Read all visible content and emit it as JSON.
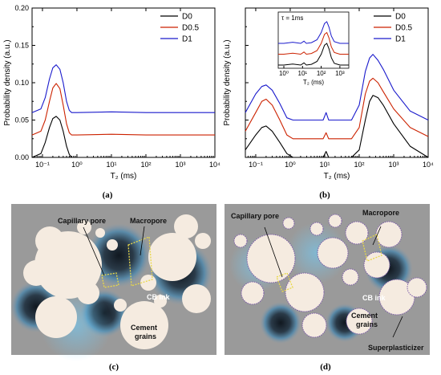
{
  "panel_labels": {
    "a": "(a)",
    "b": "(b)",
    "c": "(c)",
    "d": "(d)"
  },
  "colors": {
    "D0": "#000000",
    "D0.5": "#cc2200",
    "D1": "#1a1acc"
  },
  "chart_data": [
    {
      "type": "line",
      "panel": "a",
      "xlabel": "T₂ (ms)",
      "ylabel": "Probability density (a.u.)",
      "xscale": "log",
      "xlim": [
        0.05,
        10000
      ],
      "ylim": [
        0,
        0.2
      ],
      "x_ticks": [
        "10⁻¹",
        "10⁰",
        "10¹",
        "10²",
        "10³",
        "10⁴"
      ],
      "y_ticks": [
        "0.00",
        "0.05",
        "0.10",
        "0.15",
        "0.20"
      ],
      "legend": "top-right",
      "series": [
        {
          "name": "D0",
          "color": "#000000",
          "x": [
            0.05,
            0.09,
            0.12,
            0.16,
            0.2,
            0.25,
            0.32,
            0.4,
            0.5,
            0.6,
            0.7,
            1,
            10,
            100,
            1000,
            10000
          ],
          "y": [
            0.0,
            0.005,
            0.02,
            0.04,
            0.052,
            0.055,
            0.05,
            0.035,
            0.015,
            0.004,
            0.0,
            0.0,
            0.0,
            0.0,
            0.0,
            0.0
          ]
        },
        {
          "name": "D0.5",
          "color": "#cc2200",
          "x": [
            0.05,
            0.09,
            0.12,
            0.16,
            0.2,
            0.25,
            0.32,
            0.4,
            0.5,
            0.6,
            0.7,
            1,
            10,
            100,
            1000,
            10000
          ],
          "y": [
            0.03,
            0.035,
            0.05,
            0.075,
            0.093,
            0.099,
            0.092,
            0.07,
            0.045,
            0.033,
            0.03,
            0.03,
            0.031,
            0.03,
            0.03,
            0.03
          ]
        },
        {
          "name": "D1",
          "color": "#1a1acc",
          "x": [
            0.05,
            0.09,
            0.12,
            0.16,
            0.2,
            0.25,
            0.32,
            0.4,
            0.5,
            0.6,
            0.7,
            1,
            10,
            100,
            1000,
            10000
          ],
          "y": [
            0.06,
            0.065,
            0.08,
            0.105,
            0.12,
            0.124,
            0.118,
            0.1,
            0.075,
            0.063,
            0.06,
            0.06,
            0.061,
            0.06,
            0.06,
            0.06
          ]
        }
      ]
    },
    {
      "type": "line",
      "panel": "b",
      "xlabel": "T₂ (ms)",
      "ylabel": "Probability density (a.u.)",
      "xscale": "log",
      "xlim": [
        0.05,
        10000
      ],
      "ylim": [
        0,
        0.2
      ],
      "x_ticks": [
        "10⁻¹",
        "10⁰",
        "10¹",
        "10²",
        "10³",
        "10⁴"
      ],
      "legend": "top-right",
      "inset": {
        "label": "τ = 1ms",
        "xlabel": "T₂ (ms)",
        "x_ticks": [
          "10⁰",
          "10¹",
          "10²",
          "10³"
        ]
      },
      "series": [
        {
          "name": "D0",
          "color": "#000000",
          "x": [
            0.05,
            0.1,
            0.15,
            0.2,
            0.3,
            0.5,
            0.8,
            1.2,
            2,
            5,
            9,
            11,
            13,
            20,
            60,
            100,
            150,
            200,
            250,
            350,
            500,
            1000,
            3000,
            10000
          ],
          "y": [
            0.01,
            0.03,
            0.04,
            0.042,
            0.035,
            0.02,
            0.005,
            0.0,
            0.0,
            0.0,
            0.0,
            0.008,
            0.0,
            0.0,
            0.0,
            0.01,
            0.05,
            0.075,
            0.083,
            0.08,
            0.07,
            0.045,
            0.015,
            0.0
          ]
        },
        {
          "name": "D0.5",
          "color": "#cc2200",
          "x": [
            0.05,
            0.1,
            0.15,
            0.2,
            0.3,
            0.5,
            0.8,
            1.2,
            2,
            5,
            9,
            11,
            13,
            20,
            60,
            100,
            150,
            200,
            250,
            350,
            500,
            1000,
            3000,
            10000
          ],
          "y": [
            0.035,
            0.06,
            0.075,
            0.078,
            0.07,
            0.05,
            0.03,
            0.025,
            0.025,
            0.025,
            0.025,
            0.033,
            0.025,
            0.025,
            0.025,
            0.04,
            0.085,
            0.102,
            0.106,
            0.1,
            0.088,
            0.065,
            0.04,
            0.028
          ]
        },
        {
          "name": "D1",
          "color": "#1a1acc",
          "x": [
            0.05,
            0.1,
            0.15,
            0.2,
            0.3,
            0.5,
            0.8,
            1.2,
            2,
            5,
            9,
            11,
            13,
            20,
            60,
            100,
            150,
            200,
            250,
            350,
            500,
            1000,
            3000,
            10000
          ],
          "y": [
            0.06,
            0.085,
            0.095,
            0.097,
            0.09,
            0.072,
            0.053,
            0.05,
            0.05,
            0.05,
            0.05,
            0.06,
            0.05,
            0.05,
            0.05,
            0.07,
            0.115,
            0.133,
            0.138,
            0.13,
            0.118,
            0.09,
            0.062,
            0.05
          ]
        }
      ]
    }
  ],
  "illustrations": {
    "c": {
      "labels": {
        "capillary_pore": "Capillary pore",
        "macropore": "Macropore",
        "cb_ink": "CB ink",
        "cement_grains": "Cement\ngrains"
      }
    },
    "d": {
      "labels": {
        "capillary_pore": "Capillary pore",
        "macropore": "Macropore",
        "cb_ink": "CB ink",
        "cement_grains": "Cement\ngrains",
        "superplasticizer": "Superplasticizer"
      }
    }
  }
}
